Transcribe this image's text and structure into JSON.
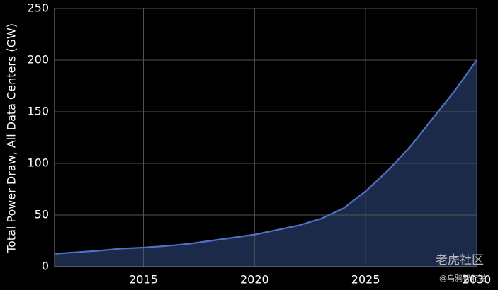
{
  "chart_data": {
    "type": "area",
    "y_label": "Total Power Draw, All Data Centers (GW)",
    "x": [
      2011,
      2012,
      2013,
      2014,
      2015,
      2016,
      2017,
      2018,
      2019,
      2020,
      2021,
      2022,
      2023,
      2024,
      2025,
      2026,
      2027,
      2028,
      2029,
      2030
    ],
    "values": [
      12.5,
      14,
      15.5,
      17.5,
      18.5,
      20,
      22,
      25,
      28,
      31,
      35.5,
      40,
      46.5,
      56.5,
      73,
      93,
      116,
      143,
      170,
      200
    ],
    "color": "#4f72c8",
    "fill": "#1c2a4a",
    "xlim": [
      2011,
      2030
    ],
    "xticks": [
      2015,
      2020,
      2025,
      2030
    ],
    "ylim": [
      0,
      250
    ],
    "yticks": [
      0,
      50,
      100,
      150,
      200,
      250
    ],
    "grid": true,
    "watermark": "老虎社区",
    "watermark_sub": "@乌鸦智能说"
  }
}
